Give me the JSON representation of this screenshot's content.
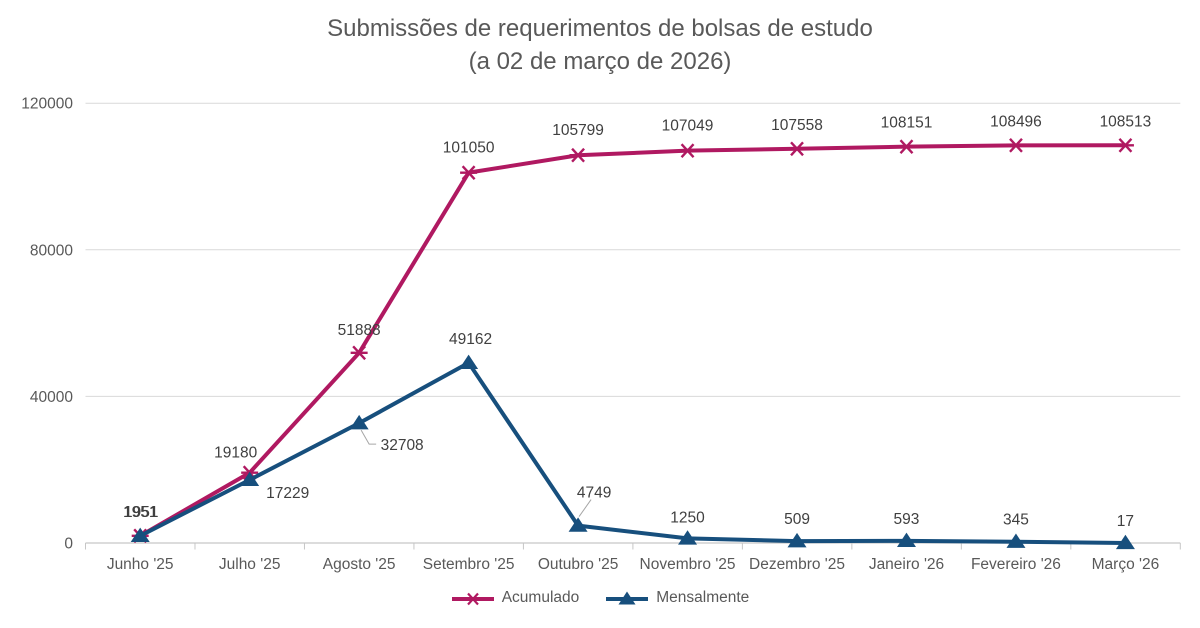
{
  "title": {
    "line1": "Submissões de requerimentos de bolsas de estudo",
    "line2": "(a 02 de março de 2026)"
  },
  "chart_data": {
    "type": "line",
    "categories": [
      "Junho '25",
      "Julho '25",
      "Agosto '25",
      "Setembro '25",
      "Outubro '25",
      "Novembro '25",
      "Dezembro '25",
      "Janeiro '26",
      "Fevereiro '26",
      "Março '26"
    ],
    "series": [
      {
        "name": "Acumulado",
        "color": "#b01961",
        "marker": "asterisk",
        "values": [
          1951,
          19180,
          51888,
          101050,
          105799,
          107049,
          107558,
          108151,
          108496,
          108513
        ],
        "label_offsets": [
          [
            0,
            -19
          ],
          [
            -14,
            -15
          ],
          [
            0,
            -18
          ],
          [
            0,
            -20
          ],
          [
            0,
            -20
          ],
          [
            0,
            -20
          ],
          [
            0,
            -19
          ],
          [
            0,
            -19
          ],
          [
            0,
            -19
          ],
          [
            0,
            -19
          ]
        ]
      },
      {
        "name": "Mensalmente",
        "color": "#174f7d",
        "marker": "triangle",
        "values": [
          1951,
          17229,
          32708,
          49162,
          4749,
          1250,
          509,
          593,
          345,
          17
        ],
        "label_offsets": [
          [
            1,
            -19
          ],
          [
            38,
            18
          ],
          [
            43,
            27
          ],
          [
            2,
            -19
          ],
          [
            16,
            -28
          ],
          [
            0,
            -16
          ],
          [
            0,
            -17
          ],
          [
            0,
            -17
          ],
          [
            0,
            -17
          ],
          [
            0,
            -17
          ]
        ],
        "leaders": {
          "2": [
            [
              2,
              7
            ],
            [
              10,
              21
            ],
            [
              17,
              21
            ]
          ],
          "4": [
            [
              13,
              -26
            ],
            [
              1,
              -9
            ]
          ]
        }
      }
    ],
    "title": "Submissões de requerimentos de bolsas de estudo (a 02 de março de 2026)",
    "xlabel": "",
    "ylabel": "",
    "ylim": [
      0,
      120000
    ],
    "yticks": [
      0,
      40000,
      80000,
      120000
    ],
    "grid": "horizontal",
    "legend_position": "bottom",
    "colors": {
      "gridline": "#d9d9d9",
      "axis_line": "#c6c6c6",
      "tick": "#c6c6c6",
      "axis_text": "#595959",
      "data_label": "#404040",
      "leader_line": "#a6a6a6",
      "title_text": "#595959"
    }
  }
}
